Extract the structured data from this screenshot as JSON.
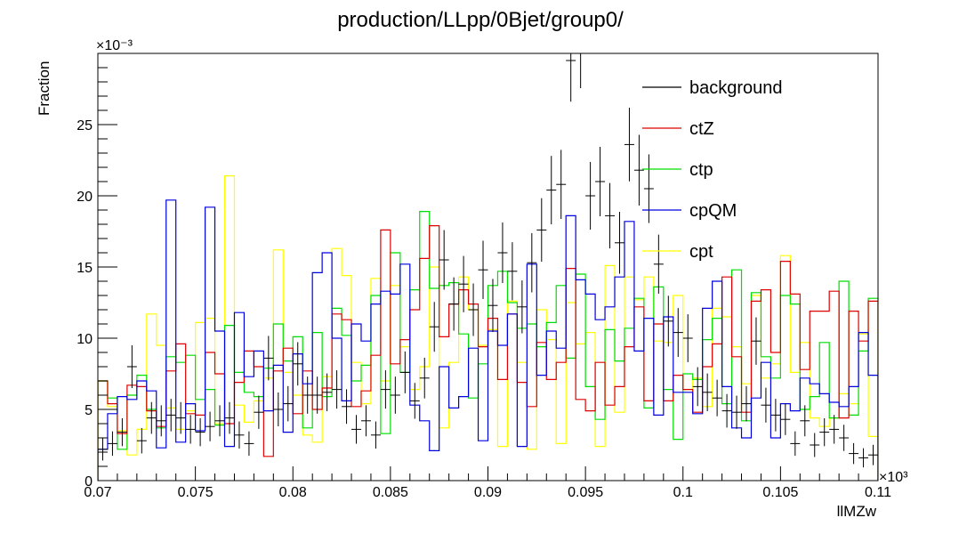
{
  "chart_data": {
    "type": "step-histogram",
    "title": "production/LLpp/0Bjet/group0/",
    "xlabel": "llMZw",
    "ylabel": "Fraction",
    "x_multiplier": "×10³",
    "y_multiplier": "×10⁻³",
    "xlim": [
      0.07,
      0.11
    ],
    "ylim": [
      0,
      30
    ],
    "x_ticks": [
      "0.07",
      "0.075",
      "0.08",
      "0.085",
      "0.09",
      "0.095",
      "0.1",
      "0.105",
      "0.11"
    ],
    "y_ticks": [
      "0",
      "5",
      "10",
      "15",
      "20",
      "25"
    ],
    "grid": false,
    "legend_position": "top-right",
    "n_bins": 80,
    "series": [
      {
        "name": "background",
        "color": "#000000",
        "style": "errorbars",
        "values": [
          2.2,
          2.6,
          3.4,
          8.0,
          2.8,
          4.4,
          4.2,
          4.6,
          4.4,
          3.6,
          3.4,
          3.8,
          4.2,
          4.4,
          3.2,
          2.6,
          4.8,
          8.6,
          5.0,
          5.4,
          8.2,
          6.0,
          6.0,
          6.2,
          6.4,
          5.2,
          3.6,
          4.2,
          3.2,
          6.4,
          6.0,
          7.6,
          5.6,
          7.2,
          10.8,
          15.5,
          12.4,
          13.8,
          12.0,
          14.8,
          12.3,
          16.0,
          14.7,
          12.2,
          15.3,
          17.6,
          20.4,
          20.8,
          29.5,
          30.5,
          20.0,
          21.0,
          18.6,
          16.7,
          23.6,
          21.8,
          20.5,
          15.2,
          11.2,
          10.4,
          10.0,
          6.6,
          6.2,
          5.8,
          4.9,
          4.8,
          5.4,
          9.8,
          5.3,
          4.6,
          4.3,
          2.6,
          4.2,
          2.5,
          3.4,
          3.6,
          3.0,
          1.9,
          1.6,
          1.8
        ]
      },
      {
        "name": "ctZ",
        "color": "#dd0000",
        "style": "step",
        "values": [
          7.0,
          5.4,
          3.3,
          6.7,
          6.6,
          4.9,
          3.8,
          7.7,
          9.6,
          4.7,
          4.6,
          9.0,
          7.5,
          4.0,
          6.9,
          9.1,
          8.0,
          1.7,
          7.7,
          9.3,
          4.7,
          7.7,
          5.0,
          6.5,
          11.7,
          11.3,
          5.2,
          6.3,
          8.8,
          17.6,
          8.2,
          9.9,
          12.0,
          15.6,
          17.9,
          10.1,
          12.4,
          13.4,
          12.4,
          9.4,
          11.4,
          7.1,
          11.7,
          6.9,
          5.2,
          9.7,
          7.1,
          8.3,
          14.9,
          5.7,
          4.9,
          8.3,
          5.3,
          6.6,
          9.4,
          12.2,
          5.6,
          11.0,
          5.6,
          7.4,
          6.4,
          4.8,
          8.0,
          9.6,
          14.3,
          8.7,
          4.8,
          12.6,
          13.4,
          9.0,
          15.4,
          13.1,
          7.8,
          11.9,
          11.9,
          13.3,
          4.4,
          11.9,
          9.8,
          12.6
        ]
      },
      {
        "name": "ctp",
        "color": "#00dd00",
        "style": "step",
        "values": [
          7.0,
          5.8,
          2.2,
          6.0,
          7.4,
          5.0,
          3.7,
          8.7,
          8.3,
          8.8,
          5.7,
          6.4,
          3.9,
          10.9,
          7.6,
          6.2,
          5.9,
          7.9,
          11.0,
          8.4,
          10.1,
          3.7,
          10.4,
          5.9,
          12.1,
          10.2,
          7.0,
          8.1,
          13.0,
          3.3,
          16.0,
          7.6,
          13.4,
          18.9,
          13.5,
          13.7,
          13.9,
          10.3,
          5.8,
          8.2,
          13.7,
          14.7,
          12.5,
          10.7,
          11.0,
          9.4,
          11.1,
          13.7,
          8.6,
          14.5,
          6.6,
          4.3,
          10.6,
          8.4,
          10.7,
          12.8,
          5.1,
          13.6,
          6.4,
          2.9,
          7.5,
          7.1,
          9.9,
          11.4,
          5.4,
          14.8,
          4.2,
          13.2,
          8.7,
          7.2,
          13.0,
          12.4,
          5.0,
          5.9,
          9.7,
          4.4,
          14.0,
          4.6,
          9.1,
          12.8
        ]
      },
      {
        "name": "cpQM",
        "color": "#0000dd",
        "style": "step",
        "values": [
          2.2,
          4.7,
          5.9,
          5.7,
          7.0,
          6.3,
          2.3,
          19.7,
          2.7,
          5.4,
          3.5,
          19.2,
          10.5,
          2.4,
          11.8,
          7.3,
          9.1,
          4.9,
          8.1,
          3.4,
          8.9,
          6.8,
          14.6,
          16.0,
          10.0,
          5.6,
          11.0,
          9.8,
          12.4,
          13.3,
          13.1,
          15.2,
          5.3,
          4.2,
          2.1,
          8.0,
          5.1,
          5.9,
          9.3,
          2.8,
          10.5,
          9.5,
          11.7,
          2.4,
          15.2,
          7.4,
          10.5,
          9.3,
          18.6,
          14.1,
          13.1,
          11.3,
          12.2,
          14.3,
          18.2,
          9.1,
          11.4,
          4.6,
          11.5,
          6.2,
          6.2,
          4.7,
          12.1,
          14.0,
          6.6,
          3.7,
          3.0,
          5.8,
          8.3,
          3.0,
          5.4,
          4.9,
          7.2,
          6.8,
          6.1,
          5.5,
          5.2,
          6.6,
          10.4,
          7.4
        ]
      },
      {
        "name": "cpt",
        "color": "#ffff00",
        "style": "step",
        "values": [
          7.0,
          5.2,
          3.5,
          1.8,
          3.6,
          11.7,
          9.5,
          5.1,
          3.6,
          4.9,
          11.1,
          11.4,
          4.0,
          21.4,
          5.3,
          4.1,
          5.6,
          7.2,
          16.2,
          7.6,
          6.0,
          3.2,
          2.7,
          7.3,
          16.3,
          14.4,
          8.3,
          5.4,
          14.2,
          7.0,
          13.7,
          9.4,
          6.4,
          8.0,
          15.0,
          3.7,
          8.3,
          14.3,
          12.0,
          9.5,
          10.6,
          2.4,
          12.6,
          8.3,
          2.2,
          12.0,
          9.9,
          2.6,
          12.5,
          9.6,
          10.4,
          2.4,
          15.1,
          4.8,
          14.3,
          12.7,
          14.3,
          9.8,
          9.7,
          13.0,
          6.4,
          7.2,
          5.2,
          12.1,
          11.5,
          9.4,
          6.8,
          13.0,
          7.2,
          8.2,
          15.8,
          7.6,
          9.7,
          4.4,
          3.8,
          4.4,
          6.1,
          5.4,
          10.3,
          3.1
        ]
      }
    ]
  }
}
